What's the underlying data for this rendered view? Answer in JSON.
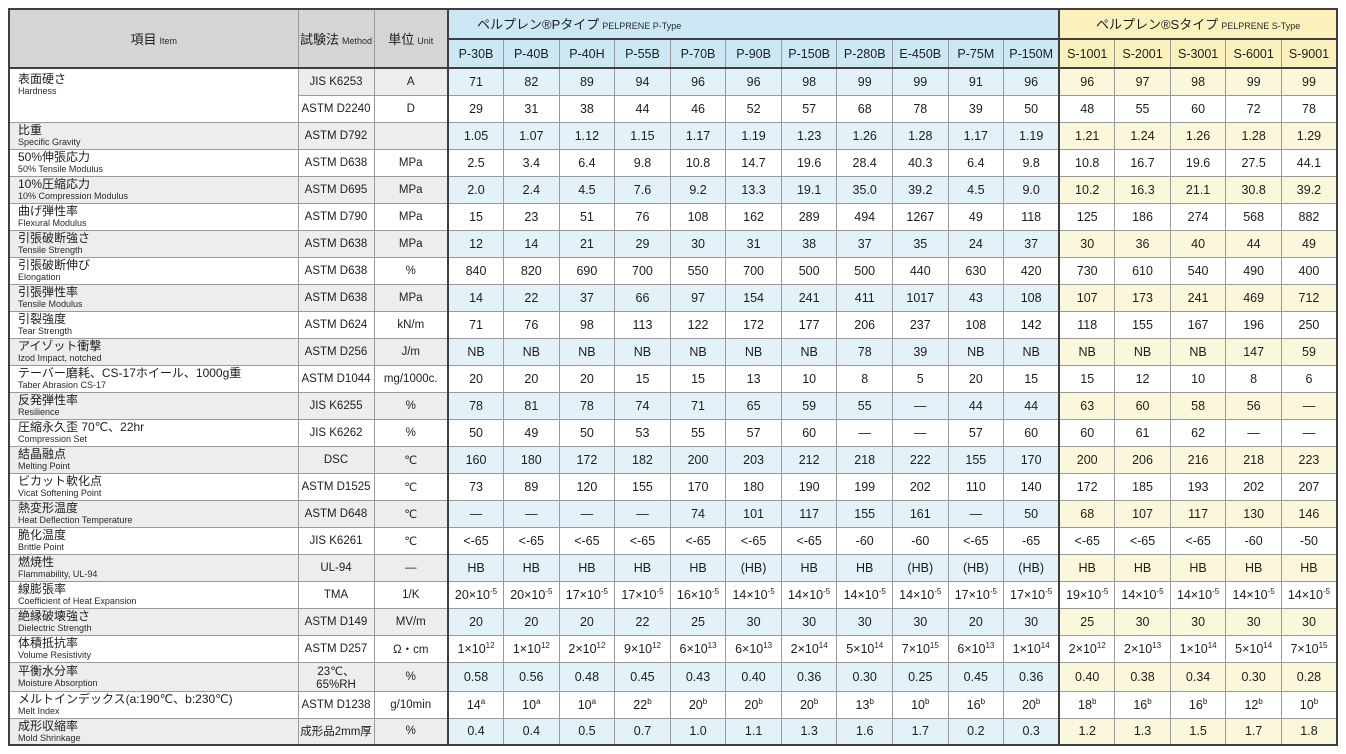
{
  "title": "PELPRENE physical properties table",
  "colors": {
    "header_gray": "#d5d5d5",
    "label_tint_gray": "#ededed",
    "p_header_blue": "#cde8f5",
    "p_row_blue": "#e3f1f9",
    "s_header_yellow": "#fbf1bc",
    "s_row_yellow": "#fbf7da",
    "border_dark": "#3f3f3f",
    "border_light": "#9a9a9a"
  },
  "table": {
    "corner": {
      "item_jp": "項目",
      "item_en": "Item",
      "method_jp": "試験法",
      "method_en": "Method",
      "unit_jp": "単位",
      "unit_en": "Unit"
    },
    "groups": {
      "p": {
        "title_jp": "ペルプレン®Pタイプ",
        "title_en": "PELPRENE P-Type",
        "columns": [
          "P-30B",
          "P-40B",
          "P-40H",
          "P-55B",
          "P-70B",
          "P-90B",
          "P-150B",
          "P-280B",
          "E-450B",
          "P-75M",
          "P-150M"
        ]
      },
      "s": {
        "title_jp": "ペルプレン®Sタイプ",
        "title_en": "PELPRENE S-Type",
        "columns": [
          "S-1001",
          "S-2001",
          "S-3001",
          "S-6001",
          "S-9001"
        ]
      }
    },
    "rows": [
      {
        "jp": "表面硬さ",
        "en": "Hardness",
        "rowspan": 2,
        "method": "JIS K6253",
        "unit": "A",
        "p": [
          "71",
          "82",
          "89",
          "94",
          "96",
          "96",
          "98",
          "99",
          "99",
          "91",
          "96"
        ],
        "s": [
          "96",
          "97",
          "98",
          "99",
          "99"
        ]
      },
      {
        "jp": null,
        "en": null,
        "method": "ASTM D2240",
        "unit": "D",
        "p": [
          "29",
          "31",
          "38",
          "44",
          "46",
          "52",
          "57",
          "68",
          "78",
          "39",
          "50"
        ],
        "s": [
          "48",
          "55",
          "60",
          "72",
          "78"
        ]
      },
      {
        "jp": "比重",
        "en": "Specific Gravity",
        "method": "ASTM D792",
        "unit": "",
        "p": [
          "1.05",
          "1.07",
          "1.12",
          "1.15",
          "1.17",
          "1.19",
          "1.23",
          "1.26",
          "1.28",
          "1.17",
          "1.19"
        ],
        "s": [
          "1.21",
          "1.24",
          "1.26",
          "1.28",
          "1.29"
        ]
      },
      {
        "jp": "50%伸張応力",
        "en": "50% Tensile Modulus",
        "method": "ASTM D638",
        "unit": "MPa",
        "p": [
          "2.5",
          "3.4",
          "6.4",
          "9.8",
          "10.8",
          "14.7",
          "19.6",
          "28.4",
          "40.3",
          "6.4",
          "9.8"
        ],
        "s": [
          "10.8",
          "16.7",
          "19.6",
          "27.5",
          "44.1"
        ]
      },
      {
        "jp": "10%圧縮応力",
        "en": "10% Compression Modulus",
        "method": "ASTM D695",
        "unit": "MPa",
        "p": [
          "2.0",
          "2.4",
          "4.5",
          "7.6",
          "9.2",
          "13.3",
          "19.1",
          "35.0",
          "39.2",
          "4.5",
          "9.0"
        ],
        "s": [
          "10.2",
          "16.3",
          "21.1",
          "30.8",
          "39.2"
        ]
      },
      {
        "jp": "曲げ弾性率",
        "en": "Flexural Modulus",
        "method": "ASTM D790",
        "unit": "MPa",
        "p": [
          "15",
          "23",
          "51",
          "76",
          "108",
          "162",
          "289",
          "494",
          "1267",
          "49",
          "118"
        ],
        "s": [
          "125",
          "186",
          "274",
          "568",
          "882"
        ]
      },
      {
        "jp": "引張破断強さ",
        "en": "Tensile Strength",
        "method": "ASTM D638",
        "unit": "MPa",
        "p": [
          "12",
          "14",
          "21",
          "29",
          "30",
          "31",
          "38",
          "37",
          "35",
          "24",
          "37"
        ],
        "s": [
          "30",
          "36",
          "40",
          "44",
          "49"
        ]
      },
      {
        "jp": "引張破断伸び",
        "en": "Elongation",
        "method": "ASTM D638",
        "unit": "%",
        "p": [
          "840",
          "820",
          "690",
          "700",
          "550",
          "700",
          "500",
          "500",
          "440",
          "630",
          "420"
        ],
        "s": [
          "730",
          "610",
          "540",
          "490",
          "400"
        ]
      },
      {
        "jp": "引張弾性率",
        "en": "Tensile Modulus",
        "method": "ASTM D638",
        "unit": "MPa",
        "p": [
          "14",
          "22",
          "37",
          "66",
          "97",
          "154",
          "241",
          "411",
          "1017",
          "43",
          "108"
        ],
        "s": [
          "107",
          "173",
          "241",
          "469",
          "712"
        ]
      },
      {
        "jp": "引裂強度",
        "en": "Tear Strength",
        "method": "ASTM D624",
        "unit": "kN/m",
        "p": [
          "71",
          "76",
          "98",
          "113",
          "122",
          "172",
          "177",
          "206",
          "237",
          "108",
          "142"
        ],
        "s": [
          "118",
          "155",
          "167",
          "196",
          "250"
        ]
      },
      {
        "jp": "アイゾット衝撃",
        "en": "Izod Impact, notched",
        "method": "ASTM D256",
        "unit": "J/m",
        "p": [
          "NB",
          "NB",
          "NB",
          "NB",
          "NB",
          "NB",
          "NB",
          "78",
          "39",
          "NB",
          "NB"
        ],
        "s": [
          "NB",
          "NB",
          "NB",
          "147",
          "59"
        ]
      },
      {
        "jp": "テーバー磨耗、CS-17ホイール、1000g重",
        "en": "Taber Abrasion CS-17",
        "method": "ASTM D1044",
        "unit": "mg/1000c.",
        "p": [
          "20",
          "20",
          "20",
          "15",
          "15",
          "13",
          "10",
          "8",
          "5",
          "20",
          "15"
        ],
        "s": [
          "15",
          "12",
          "10",
          "8",
          "6"
        ]
      },
      {
        "jp": "反発弾性率",
        "en": "Resilience",
        "method": "JIS K6255",
        "unit": "%",
        "p": [
          "78",
          "81",
          "78",
          "74",
          "71",
          "65",
          "59",
          "55",
          "—",
          "44",
          "44"
        ],
        "s": [
          "63",
          "60",
          "58",
          "56",
          "—"
        ]
      },
      {
        "jp": "圧縮永久歪 70℃、22hr",
        "en": "Compression Set",
        "method": "JIS K6262",
        "unit": "%",
        "p": [
          "50",
          "49",
          "50",
          "53",
          "55",
          "57",
          "60",
          "—",
          "—",
          "57",
          "60"
        ],
        "s": [
          "60",
          "61",
          "62",
          "—",
          "—"
        ]
      },
      {
        "jp": "結晶融点",
        "en": "Melting Point",
        "method": "DSC",
        "unit": "℃",
        "p": [
          "160",
          "180",
          "172",
          "182",
          "200",
          "203",
          "212",
          "218",
          "222",
          "155",
          "170"
        ],
        "s": [
          "200",
          "206",
          "216",
          "218",
          "223"
        ]
      },
      {
        "jp": "ビカット軟化点",
        "en": "Vicat Softening Point",
        "method": "ASTM D1525",
        "unit": "℃",
        "p": [
          "73",
          "89",
          "120",
          "155",
          "170",
          "180",
          "190",
          "199",
          "202",
          "110",
          "140"
        ],
        "s": [
          "172",
          "185",
          "193",
          "202",
          "207"
        ]
      },
      {
        "jp": "熱変形温度",
        "en": "Heat Deflection Temperature",
        "method": "ASTM D648",
        "unit": "℃",
        "p": [
          "—",
          "—",
          "—",
          "—",
          "74",
          "101",
          "117",
          "155",
          "161",
          "—",
          "50"
        ],
        "s": [
          "68",
          "107",
          "117",
          "130",
          "146"
        ]
      },
      {
        "jp": "脆化温度",
        "en": "Brittle Point",
        "method": "JIS K6261",
        "unit": "℃",
        "p": [
          "<-65",
          "<-65",
          "<-65",
          "<-65",
          "<-65",
          "<-65",
          "<-65",
          "-60",
          "-60",
          "<-65",
          "-65"
        ],
        "s": [
          "<-65",
          "<-65",
          "<-65",
          "-60",
          "-50"
        ]
      },
      {
        "jp": "燃焼性",
        "en": "Flammability, UL-94",
        "method": "UL-94",
        "unit": "—",
        "p": [
          "HB",
          "HB",
          "HB",
          "HB",
          "HB",
          "(HB)",
          "HB",
          "HB",
          "(HB)",
          "(HB)",
          "(HB)"
        ],
        "s": [
          "HB",
          "HB",
          "HB",
          "HB",
          "HB"
        ]
      },
      {
        "jp": "線膨張率",
        "en": "Coefficient of Heat Expansion",
        "method": "TMA",
        "unit": "1/K",
        "p": [
          "20×10^-5",
          "20×10^-5",
          "17×10^-5",
          "17×10^-5",
          "16×10^-5",
          "14×10^-5",
          "14×10^-5",
          "14×10^-5",
          "14×10^-5",
          "17×10^-5",
          "17×10^-5"
        ],
        "s": [
          "19×10^-5",
          "14×10^-5",
          "14×10^-5",
          "14×10^-5",
          "14×10^-5"
        ]
      },
      {
        "jp": "絶縁破壊強さ",
        "en": "Dielectric Strength",
        "method": "ASTM D149",
        "unit": "MV/m",
        "p": [
          "20",
          "20",
          "20",
          "22",
          "25",
          "30",
          "30",
          "30",
          "30",
          "20",
          "30"
        ],
        "s": [
          "25",
          "30",
          "30",
          "30",
          "30"
        ]
      },
      {
        "jp": "体積抵抗率",
        "en": "Volume Resistivity",
        "method": "ASTM D257",
        "unit": "Ω・cm",
        "p": [
          "1×10^12",
          "1×10^12",
          "2×10^12",
          "9×10^12",
          "6×10^13",
          "6×10^13",
          "2×10^14",
          "5×10^14",
          "7×10^15",
          "6×10^13",
          "1×10^14"
        ],
        "s": [
          "2×10^12",
          "2×10^13",
          "1×10^14",
          "5×10^14",
          "7×10^15"
        ]
      },
      {
        "jp": "平衡水分率",
        "en": "Moisture Absorption",
        "method": "23℃、65%RH",
        "unit": "%",
        "p": [
          "0.58",
          "0.56",
          "0.48",
          "0.45",
          "0.43",
          "0.40",
          "0.36",
          "0.30",
          "0.25",
          "0.45",
          "0.36"
        ],
        "s": [
          "0.40",
          "0.38",
          "0.34",
          "0.30",
          "0.28"
        ]
      },
      {
        "jp": "メルトインデックス(a:190℃、b:230℃)",
        "en": "Melt Index",
        "method": "ASTM D1238",
        "unit": "g/10min",
        "p": [
          "14^a",
          "10^a",
          "10^a",
          "22^b",
          "20^b",
          "20^b",
          "20^b",
          "13^b",
          "10^b",
          "16^b",
          "20^b"
        ],
        "s": [
          "18^b",
          "16^b",
          "16^b",
          "12^b",
          "10^b"
        ]
      },
      {
        "jp": "成形収縮率",
        "en": "Mold Shrinkage",
        "method": "成形品2mm厚",
        "unit": "%",
        "p": [
          "0.4",
          "0.4",
          "0.5",
          "0.7",
          "1.0",
          "1.1",
          "1.3",
          "1.6",
          "1.7",
          "0.2",
          "0.3"
        ],
        "s": [
          "1.2",
          "1.3",
          "1.5",
          "1.7",
          "1.8"
        ]
      }
    ]
  }
}
